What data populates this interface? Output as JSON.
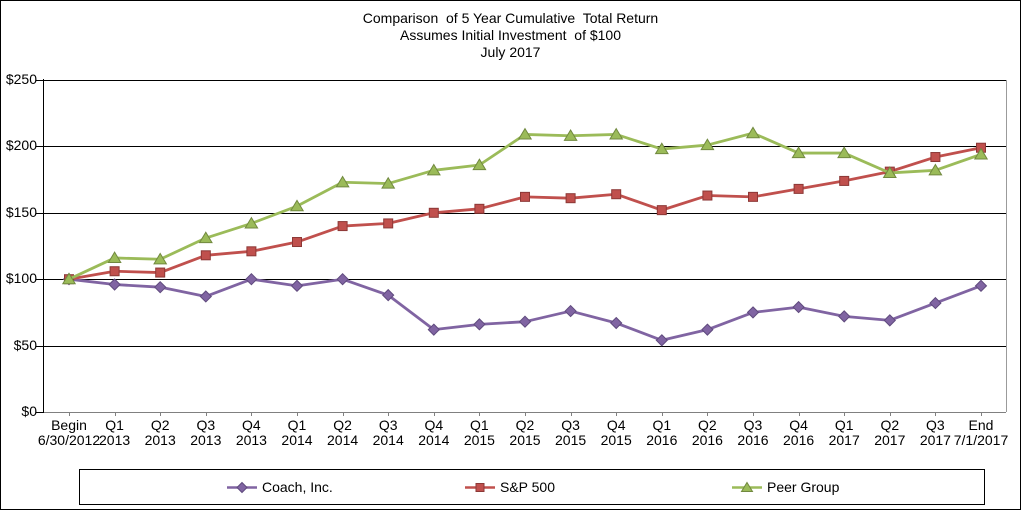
{
  "title": {
    "line1": "Comparison  of 5 Year Cumulative  Total Return",
    "line2": "Assumes Initial Investment  of $100",
    "line3": "July 2017"
  },
  "chart_data": {
    "type": "line",
    "title": "Comparison of 5 Year Cumulative Total Return",
    "subtitle": "Assumes Initial Investment of $100",
    "period_label": "July 2017",
    "categories": [
      "Begin 6/30/2012",
      "Q1 2013",
      "Q2 2013",
      "Q3 2013",
      "Q4 2013",
      "Q1 2014",
      "Q2 2014",
      "Q3 2014",
      "Q4 2014",
      "Q1 2015",
      "Q2 2015",
      "Q3 2015",
      "Q4 2015",
      "Q1 2016",
      "Q2 2016",
      "Q3 2016",
      "Q4 2016",
      "Q1 2017",
      "Q2 2017",
      "Q3 2017",
      "End 7/1/2017"
    ],
    "series": [
      {
        "name": "Coach, Inc.",
        "marker": "diamond",
        "color": "#8064A2",
        "border_color": "#5F4A7D",
        "values": [
          100,
          96,
          94,
          87,
          100,
          95,
          100,
          88,
          62,
          66,
          68,
          76,
          67,
          54,
          62,
          75,
          79,
          72,
          69,
          82,
          95
        ]
      },
      {
        "name": "S&P 500",
        "marker": "square",
        "color": "#C0504D",
        "border_color": "#8C3836",
        "values": [
          100,
          106,
          105,
          118,
          121,
          128,
          140,
          142,
          150,
          153,
          162,
          161,
          164,
          152,
          163,
          162,
          168,
          174,
          181,
          192,
          199
        ]
      },
      {
        "name": "Peer Group",
        "marker": "triangle",
        "color": "#9BBB59",
        "border_color": "#71893F",
        "values": [
          100,
          116,
          115,
          131,
          142,
          155,
          173,
          172,
          182,
          186,
          209,
          208,
          209,
          198,
          201,
          210,
          195,
          195,
          180,
          182,
          194
        ]
      }
    ],
    "ylim": [
      0,
      250
    ],
    "y_ticks": [
      {
        "label": "$0",
        "value": 0
      },
      {
        "label": "$50",
        "value": 50
      },
      {
        "label": "$100",
        "value": 100
      },
      {
        "label": "$150",
        "value": 150
      },
      {
        "label": "$200",
        "value": 200
      },
      {
        "label": "$250",
        "value": 250
      }
    ],
    "grid": "horizontal",
    "legend_position": "bottom"
  }
}
